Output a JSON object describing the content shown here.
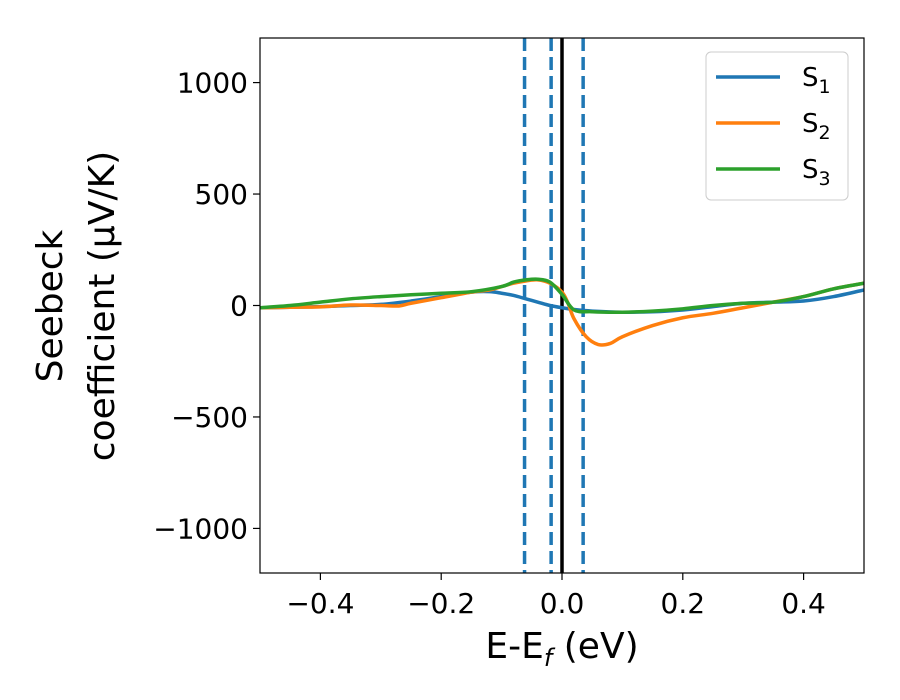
{
  "chart_data": {
    "type": "line",
    "xlabel": "E-E",
    "xlabel_sub": "f",
    "xlabel_unit": " (eV)",
    "ylabel_line1": "Seebeck",
    "ylabel_line2": "coefficient  (μV/K)",
    "xlim": [
      -0.5,
      0.5
    ],
    "ylim": [
      -1200,
      1200
    ],
    "xticks": [
      -0.4,
      -0.2,
      0.0,
      0.2,
      0.4
    ],
    "xtick_labels": [
      "−0.4",
      "−0.2",
      "0.0",
      "0.2",
      "0.4"
    ],
    "yticks": [
      1000,
      500,
      0,
      -500,
      -1000
    ],
    "ytick_labels": [
      "1000",
      "500",
      "0",
      "−500",
      "−1000"
    ],
    "grid": false,
    "legend_placement": "top-right",
    "vlines": [
      {
        "x": -0.062,
        "style": "dashed",
        "color": "#1f77b4"
      },
      {
        "x": -0.018,
        "style": "dashed",
        "color": "#1f77b4"
      },
      {
        "x": 0.035,
        "style": "dashed",
        "color": "#1f77b4"
      },
      {
        "x": 0.0,
        "style": "solid",
        "color": "#000000"
      }
    ],
    "series": [
      {
        "name": "S",
        "sub": "1",
        "color": "#1f77b4",
        "x": [
          -0.5,
          -0.45,
          -0.4,
          -0.35,
          -0.3,
          -0.25,
          -0.2,
          -0.15,
          -0.12,
          -0.1,
          -0.08,
          -0.06,
          -0.04,
          -0.02,
          0.0,
          0.02,
          0.05,
          0.1,
          0.15,
          0.2,
          0.25,
          0.3,
          0.35,
          0.4,
          0.45,
          0.5
        ],
        "y": [
          -10,
          -8,
          -5,
          0,
          5,
          20,
          40,
          60,
          62,
          55,
          45,
          30,
          15,
          0,
          -10,
          -18,
          -25,
          -30,
          -28,
          -20,
          -5,
          10,
          15,
          20,
          40,
          70
        ]
      },
      {
        "name": "S",
        "sub": "2",
        "color": "#ff7f0e",
        "x": [
          -0.5,
          -0.45,
          -0.4,
          -0.35,
          -0.3,
          -0.27,
          -0.25,
          -0.2,
          -0.15,
          -0.12,
          -0.1,
          -0.08,
          -0.06,
          -0.04,
          -0.02,
          0.0,
          0.01,
          0.02,
          0.04,
          0.06,
          0.08,
          0.1,
          0.15,
          0.2,
          0.25,
          0.3,
          0.35,
          0.4,
          0.45,
          0.5
        ],
        "y": [
          -10,
          -8,
          -6,
          2,
          0,
          -2,
          10,
          35,
          60,
          70,
          85,
          100,
          110,
          115,
          100,
          60,
          10,
          -60,
          -140,
          -175,
          -170,
          -140,
          -90,
          -55,
          -35,
          -10,
          15,
          40,
          75,
          100
        ]
      },
      {
        "name": "S",
        "sub": "3",
        "color": "#2ca02c",
        "x": [
          -0.5,
          -0.45,
          -0.4,
          -0.35,
          -0.3,
          -0.25,
          -0.2,
          -0.15,
          -0.1,
          -0.08,
          -0.06,
          -0.04,
          -0.02,
          0.0,
          0.02,
          0.05,
          0.1,
          0.15,
          0.2,
          0.25,
          0.3,
          0.35,
          0.4,
          0.45,
          0.5
        ],
        "y": [
          -10,
          0,
          15,
          30,
          40,
          48,
          55,
          62,
          85,
          105,
          115,
          118,
          105,
          50,
          -20,
          -28,
          -30,
          -25,
          -15,
          0,
          10,
          15,
          40,
          75,
          100
        ]
      }
    ]
  }
}
